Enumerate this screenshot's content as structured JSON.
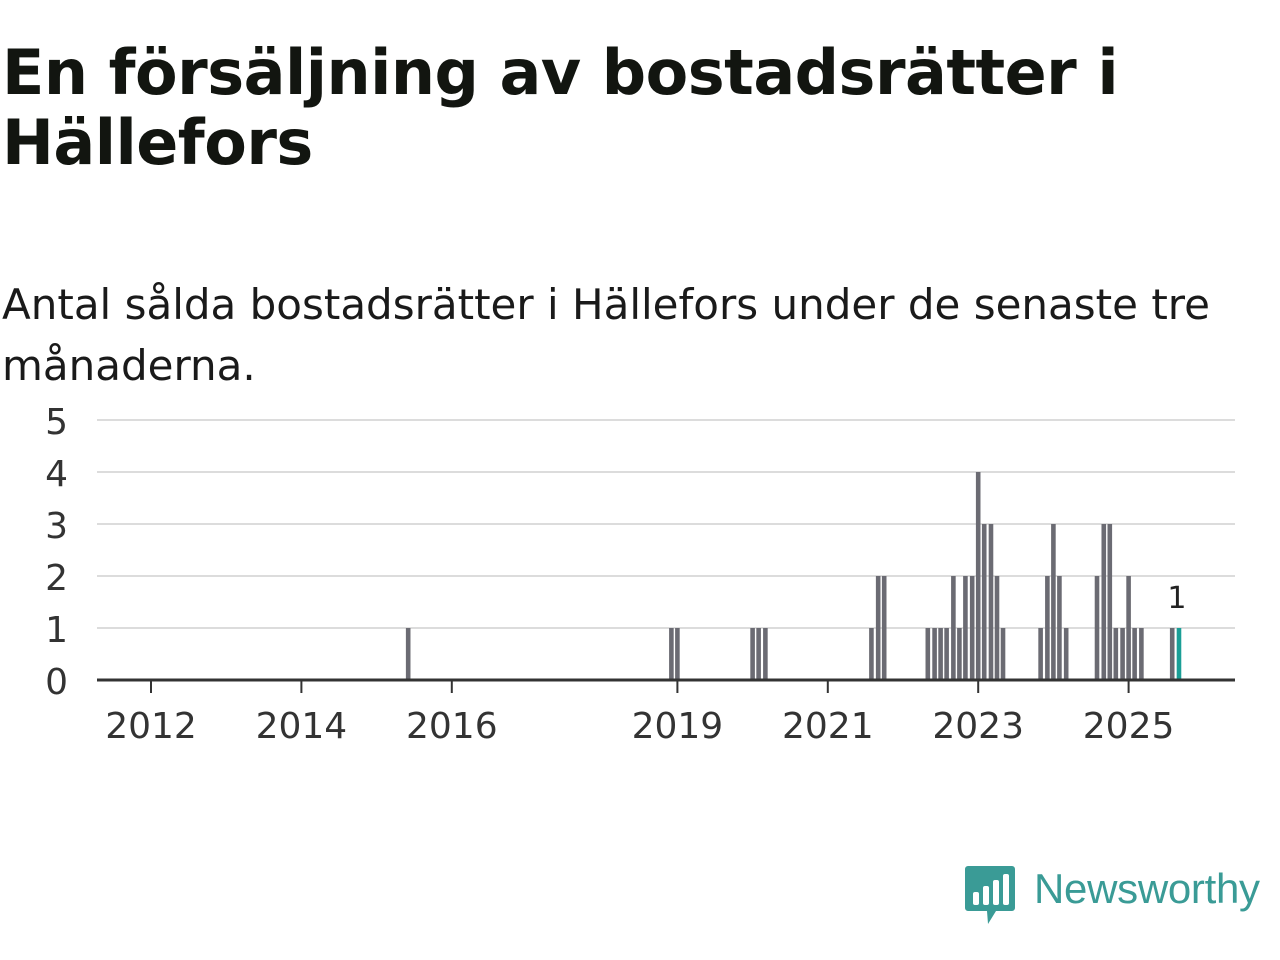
{
  "header": {
    "title": "En försäljning av bostadsrätter i Hällefors",
    "subtitle": "Antal sålda bostadsrätter i Hällefors under de senaste tre månaderna."
  },
  "colors": {
    "bar": "#6b6b73",
    "highlight": "#1a9e96",
    "grid": "#dcdcdc",
    "axis": "#333333",
    "brand": "#3a9b96"
  },
  "brand": {
    "name": "Newsworthy"
  },
  "chart_data": {
    "type": "bar",
    "title": "",
    "xlabel": "",
    "ylabel": "",
    "ylim": [
      0,
      5
    ],
    "y_ticks": [
      0,
      1,
      2,
      3,
      4,
      5
    ],
    "x_domain": [
      2011.2,
      2026.4
    ],
    "x_ticks": [
      {
        "year": 2012,
        "label": "2012"
      },
      {
        "year": 2014,
        "label": "2014"
      },
      {
        "year": 2016,
        "label": "2016"
      },
      {
        "year": 2019,
        "label": "2019"
      },
      {
        "year": 2021,
        "label": "2021"
      },
      {
        "year": 2023,
        "label": "2023"
      },
      {
        "year": 2025,
        "label": "2025"
      }
    ],
    "bars": [
      {
        "t": 2015.42,
        "v": 1
      },
      {
        "t": 2018.92,
        "v": 1
      },
      {
        "t": 2019.0,
        "v": 1
      },
      {
        "t": 2020.0,
        "v": 1
      },
      {
        "t": 2020.08,
        "v": 1
      },
      {
        "t": 2020.17,
        "v": 1
      },
      {
        "t": 2021.58,
        "v": 1
      },
      {
        "t": 2021.67,
        "v": 2
      },
      {
        "t": 2021.75,
        "v": 2
      },
      {
        "t": 2022.33,
        "v": 1
      },
      {
        "t": 2022.42,
        "v": 1
      },
      {
        "t": 2022.5,
        "v": 1
      },
      {
        "t": 2022.58,
        "v": 1
      },
      {
        "t": 2022.67,
        "v": 2
      },
      {
        "t": 2022.75,
        "v": 1
      },
      {
        "t": 2022.83,
        "v": 2
      },
      {
        "t": 2022.92,
        "v": 2
      },
      {
        "t": 2023.0,
        "v": 4
      },
      {
        "t": 2023.08,
        "v": 3
      },
      {
        "t": 2023.17,
        "v": 3
      },
      {
        "t": 2023.25,
        "v": 2
      },
      {
        "t": 2023.33,
        "v": 1
      },
      {
        "t": 2023.83,
        "v": 1
      },
      {
        "t": 2023.92,
        "v": 2
      },
      {
        "t": 2024.0,
        "v": 3
      },
      {
        "t": 2024.08,
        "v": 2
      },
      {
        "t": 2024.17,
        "v": 1
      },
      {
        "t": 2024.58,
        "v": 2
      },
      {
        "t": 2024.67,
        "v": 3
      },
      {
        "t": 2024.75,
        "v": 3
      },
      {
        "t": 2024.83,
        "v": 1
      },
      {
        "t": 2024.92,
        "v": 1
      },
      {
        "t": 2025.0,
        "v": 2
      },
      {
        "t": 2025.08,
        "v": 1
      },
      {
        "t": 2025.17,
        "v": 1
      },
      {
        "t": 2025.58,
        "v": 1
      },
      {
        "t": 2025.67,
        "v": 1,
        "highlight": true,
        "label": "1"
      }
    ]
  }
}
